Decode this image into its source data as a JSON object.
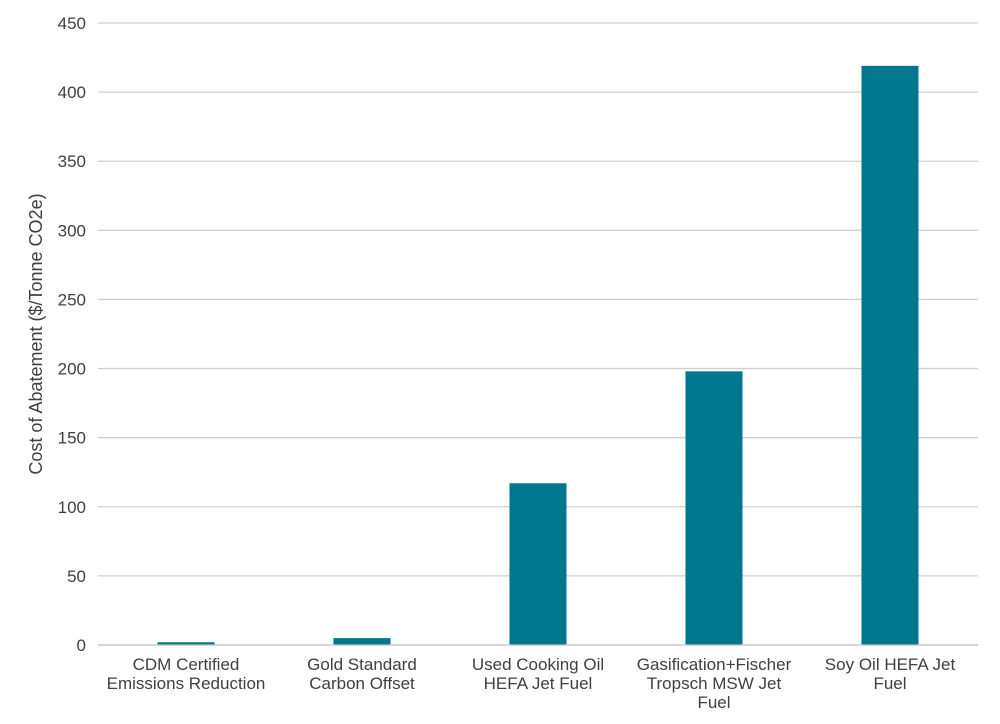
{
  "chart_data": {
    "type": "bar",
    "title": "",
    "xlabel": "",
    "ylabel": "Cost of Abatement ($/Tonne CO2e)",
    "ylim": [
      0,
      450
    ],
    "yticks": [
      0,
      50,
      100,
      150,
      200,
      250,
      300,
      350,
      400,
      450
    ],
    "grid": true,
    "categories": [
      [
        "CDM Certified",
        "Emissions Reduction"
      ],
      [
        "Gold Standard",
        "Carbon Offset"
      ],
      [
        "Used Cooking Oil",
        "HEFA Jet Fuel"
      ],
      [
        "Gasification+Fischer",
        "Tropsch MSW Jet",
        "Fuel"
      ],
      [
        "Soy Oil HEFA Jet",
        "Fuel"
      ]
    ],
    "values": [
      2,
      5,
      117,
      198,
      419
    ]
  },
  "colors": {
    "bar": "#00778f",
    "grid": "#d0d0d0",
    "axis": "#bfbfbf",
    "text": "#404040"
  }
}
